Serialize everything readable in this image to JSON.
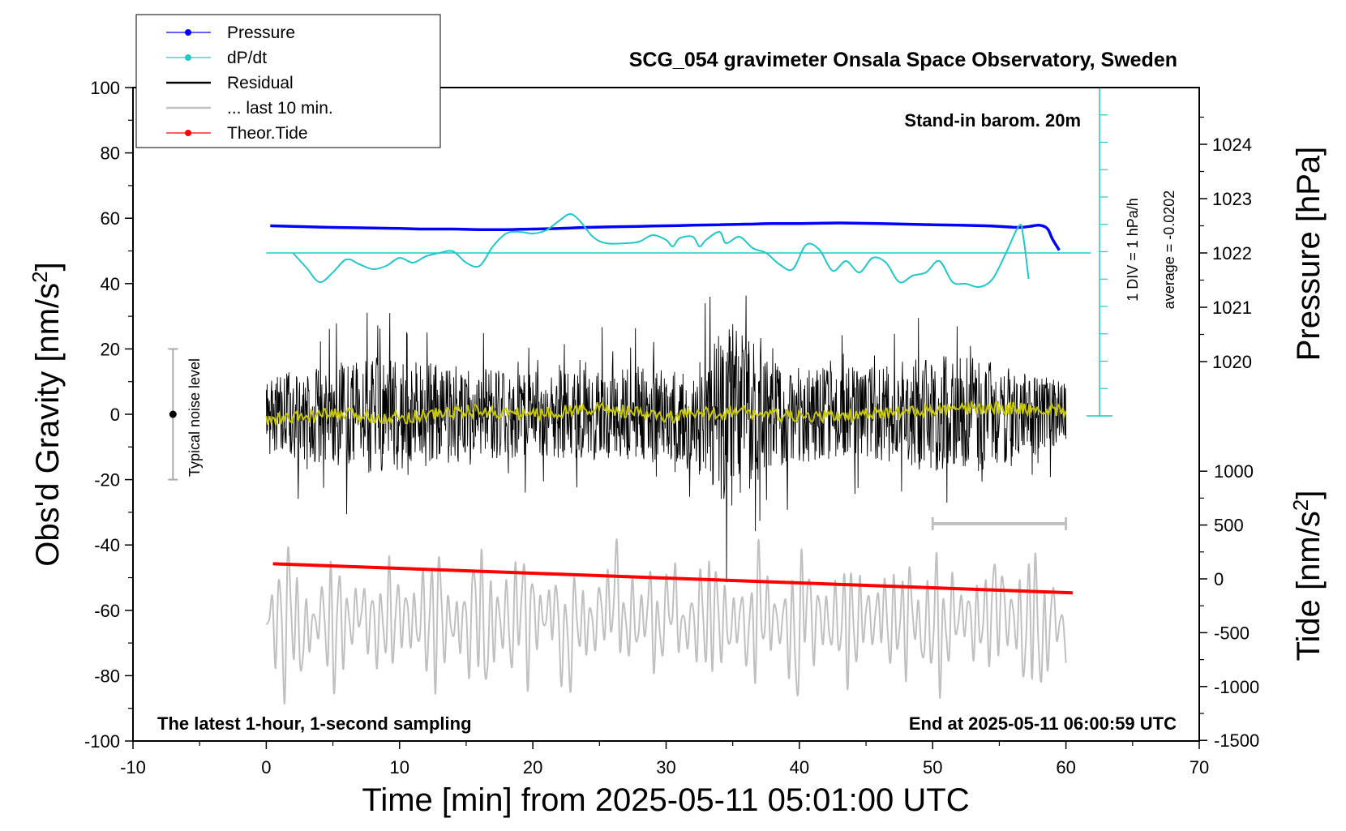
{
  "chart_data": {
    "type": "line",
    "title": "SCG_054 gravimeter Onsala Space Observatory, Sweden",
    "xlabel": "Time [min] from 2025-05-11 05:01:00 UTC",
    "ylabel": "Obs'd Gravity [nm/s",
    "ylabel_sup": "2",
    "ylabel_close": "]",
    "y2label": "Pressure [hPa]",
    "y3label": "Tide [nm/s",
    "y3label_sup": "2",
    "y3label_close": "]",
    "xlim": [
      -10,
      70
    ],
    "ylim": [
      -100,
      100
    ],
    "xticks": [
      -10,
      0,
      10,
      20,
      30,
      40,
      50,
      60,
      70
    ],
    "yticks": [
      -100,
      -80,
      -60,
      -40,
      -20,
      0,
      20,
      40,
      60,
      80,
      100
    ],
    "pressure_ticks": [
      1020,
      1021,
      1022,
      1023,
      1024
    ],
    "tide_ticks": [
      -1500,
      -1000,
      -500,
      0,
      500,
      1000
    ],
    "grid": false,
    "legend_position": "top-left",
    "legend": [
      {
        "name": "Pressure",
        "color": "#0000ff",
        "marker": true
      },
      {
        "name": "dP/dt",
        "color": "#20c8c8",
        "marker": true
      },
      {
        "name": "Residual",
        "color": "#000000",
        "marker": false
      },
      {
        "name": "... last 10 min.",
        "color": "#c0c0c0",
        "marker": false
      },
      {
        "name": "Theor.Tide",
        "color": "#ff0000",
        "marker": true
      }
    ],
    "annotations": {
      "barometer": "Stand-in barom. 20m",
      "latest": "The latest 1-hour, 1-second sampling",
      "end": "End at 2025-05-11 06:00:59 UTC",
      "div": "1 DIV = 1 hPa/h",
      "average": "average = -0.0202",
      "noise": "Typical noise level"
    },
    "series": [
      {
        "name": "Pressure",
        "axis": "pressure_hPa",
        "color": "#0000ff",
        "x": [
          0.3,
          2,
          5,
          8,
          10,
          12,
          14,
          16,
          18,
          20,
          22,
          24,
          26,
          28,
          30,
          32,
          34,
          36,
          38,
          40,
          42,
          44,
          46,
          48,
          50,
          52,
          54,
          55.5,
          56.5,
          57.3,
          58,
          58.6,
          59,
          59.5
        ],
        "y": [
          1022.5,
          1022.49,
          1022.47,
          1022.46,
          1022.45,
          1022.44,
          1022.44,
          1022.43,
          1022.43,
          1022.44,
          1022.45,
          1022.47,
          1022.48,
          1022.49,
          1022.5,
          1022.51,
          1022.52,
          1022.53,
          1022.54,
          1022.54,
          1022.55,
          1022.55,
          1022.54,
          1022.53,
          1022.52,
          1022.51,
          1022.5,
          1022.48,
          1022.47,
          1022.49,
          1022.51,
          1022.45,
          1022.25,
          1022.05
        ]
      },
      {
        "name": "dP/dt",
        "axis": "dpdt_hPa_per_h",
        "color": "#20c8c8",
        "x": [
          2,
          3,
          4,
          5,
          6,
          7,
          8,
          9,
          10,
          11,
          12,
          13,
          14,
          15,
          16,
          17,
          18,
          19,
          20,
          21,
          22,
          22.8,
          23.5,
          24.5,
          25.5,
          27,
          28,
          29,
          30,
          30.5,
          31,
          32,
          32.5,
          33,
          34,
          34.5,
          35.5,
          36.5,
          37.5,
          38.5,
          39.5,
          40.5,
          41.5,
          42.5,
          43.5,
          44.5,
          45.5,
          46.5,
          47.5,
          48.5,
          49.5,
          50.5,
          51.5,
          52.5,
          53.5,
          54.5,
          55.5,
          56.5,
          56.8,
          57.2
        ],
        "y": [
          0.0,
          -0.45,
          -0.9,
          -0.6,
          -0.2,
          -0.35,
          -0.5,
          -0.4,
          -0.15,
          -0.3,
          -0.1,
          0.0,
          0.05,
          -0.3,
          -0.4,
          0.2,
          0.6,
          0.65,
          0.6,
          0.7,
          1.0,
          1.2,
          1.0,
          0.5,
          0.3,
          0.3,
          0.35,
          0.55,
          0.4,
          0.2,
          0.45,
          0.5,
          0.2,
          0.4,
          0.65,
          0.3,
          0.5,
          0.15,
          0.0,
          -0.35,
          -0.5,
          0.25,
          0.1,
          -0.55,
          -0.25,
          -0.6,
          -0.15,
          -0.3,
          -0.9,
          -0.7,
          -0.6,
          -0.25,
          -0.9,
          -0.95,
          -1.05,
          -0.8,
          0.0,
          0.85,
          0.5,
          -0.8
        ]
      },
      {
        "name": "Residual",
        "axis": "gravity_nm_s2",
        "color": "#000000",
        "x": [
          0,
          4,
          8,
          12,
          16,
          20,
          24,
          28,
          32,
          34.5,
          38,
          42,
          46,
          50,
          54,
          58,
          60
        ],
        "envelope": [
          12,
          15,
          18,
          16,
          14,
          13,
          14,
          15,
          14,
          30,
          16,
          14,
          15,
          18,
          17,
          12,
          10
        ]
      },
      {
        "name": "Residual 20-min smoothed",
        "axis": "gravity_nm_s2",
        "color": "#c8c800",
        "x": [
          0,
          5,
          10,
          15,
          20,
          25,
          30,
          35,
          40,
          45,
          50,
          55,
          60
        ],
        "y": [
          -2,
          0,
          -1,
          1,
          0,
          2,
          -1,
          1,
          -1,
          0,
          1,
          2,
          1
        ]
      },
      {
        "name": "Theor.Tide",
        "axis": "tide_nm_s2",
        "color": "#ff0000",
        "x": [
          0.5,
          60.5
        ],
        "y": [
          140,
          -130
        ]
      },
      {
        "name": "... last 10 min.",
        "axis": "tide_panel_nm_s2",
        "color": "#c0c0c0",
        "x": [
          0,
          60
        ],
        "amplitude": [
          15,
          15
        ]
      }
    ],
    "noise_bar": {
      "x": -7,
      "ymin": -20,
      "ymax": 20
    },
    "last10_bar": {
      "xmin": 50,
      "xmax": 60
    }
  }
}
